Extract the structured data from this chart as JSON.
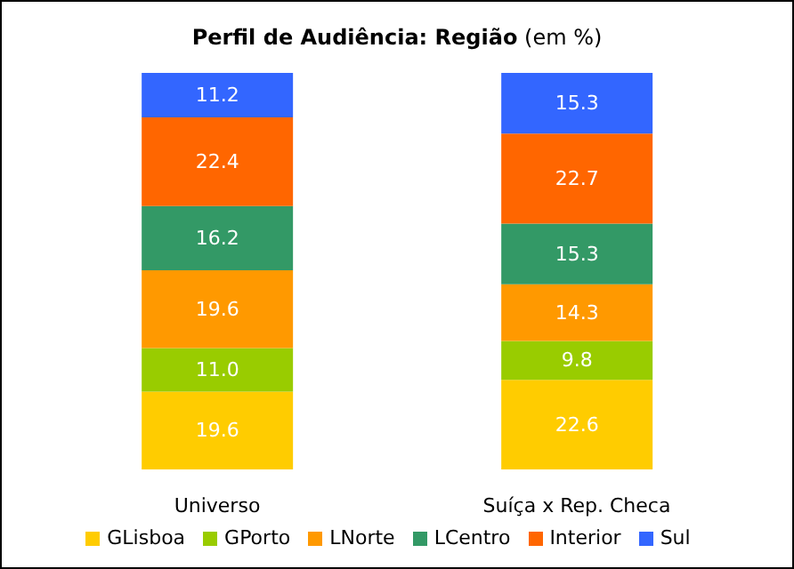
{
  "chart_data": {
    "type": "bar",
    "stacked": true,
    "title": "Perfil de Audiência: Região",
    "subtitle": "(em %)",
    "categories": [
      "Universo",
      "Suíça x Rep. Checa"
    ],
    "legend": "bottom",
    "series": [
      {
        "name": "GLisboa",
        "color": "#ffcc00",
        "values": [
          19.6,
          22.6
        ],
        "value_labels": [
          "19.6",
          "22.6"
        ]
      },
      {
        "name": "GPorto",
        "color": "#99cc00",
        "values": [
          11.0,
          9.8
        ],
        "value_labels": [
          "11.0",
          "9.8"
        ]
      },
      {
        "name": "LNorte",
        "color": "#ff9900",
        "values": [
          19.6,
          14.3
        ],
        "value_labels": [
          "19.6",
          "14.3"
        ]
      },
      {
        "name": "LCentro",
        "color": "#339966",
        "values": [
          16.2,
          15.3
        ],
        "value_labels": [
          "16.2",
          "15.3"
        ]
      },
      {
        "name": "Interior",
        "color": "#ff6600",
        "values": [
          22.4,
          22.7
        ],
        "value_labels": [
          "22.4",
          "22.7"
        ]
      },
      {
        "name": "Sul",
        "color": "#3366ff",
        "values": [
          11.2,
          15.3
        ],
        "value_labels": [
          "11.2",
          "15.3"
        ]
      }
    ]
  }
}
